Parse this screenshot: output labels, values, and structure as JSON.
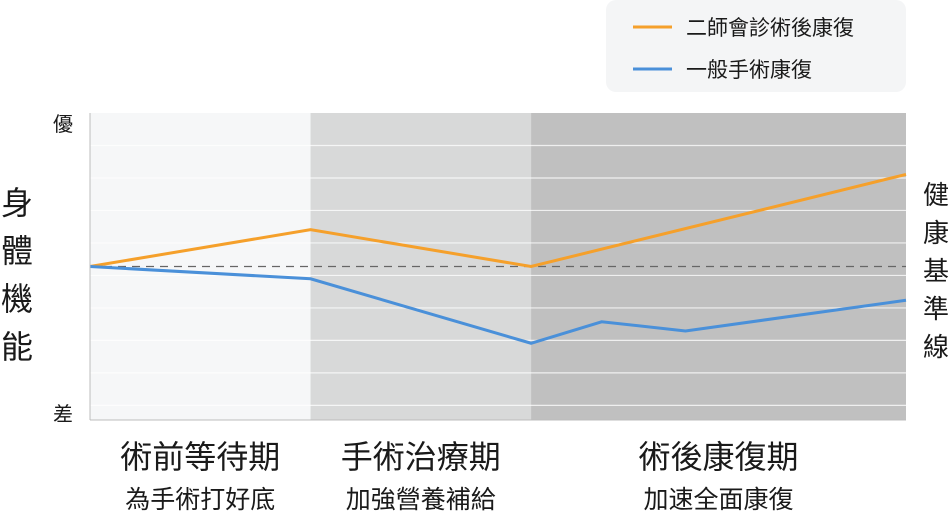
{
  "chart_data": {
    "type": "line",
    "ylabel": "身體機能",
    "y_top_label": "優",
    "y_bottom_label": "差",
    "ylim": [
      0,
      10
    ],
    "grid": true,
    "legend_position": "top-right",
    "baseline": {
      "label": "健康基準線",
      "value": 5
    },
    "phases": [
      {
        "title": "術前等待期",
        "subtitle": "為手術打好底",
        "start": 0,
        "end": 1,
        "color": "#f6f7f8"
      },
      {
        "title": "手術治療期",
        "subtitle": "加強營養補給",
        "start": 1,
        "end": 2,
        "color": "#d8d9d9"
      },
      {
        "title": "術後康復期",
        "subtitle": "加速全面康復",
        "start": 2,
        "end": 3.7,
        "color": "#c0c0c0"
      }
    ],
    "x_max": 3.7,
    "series": [
      {
        "name": "二師會診術後康復",
        "color": "#f5a02b",
        "x": [
          0,
          1,
          2,
          3.7
        ],
        "y": [
          5.0,
          6.2,
          5.0,
          8.0
        ]
      },
      {
        "name": "一般手術康復",
        "color": "#4a90d9",
        "x": [
          0,
          1,
          2,
          2.32,
          2.7,
          3.7
        ],
        "y": [
          5.0,
          4.6,
          2.5,
          3.2,
          2.9,
          3.9
        ]
      }
    ]
  }
}
